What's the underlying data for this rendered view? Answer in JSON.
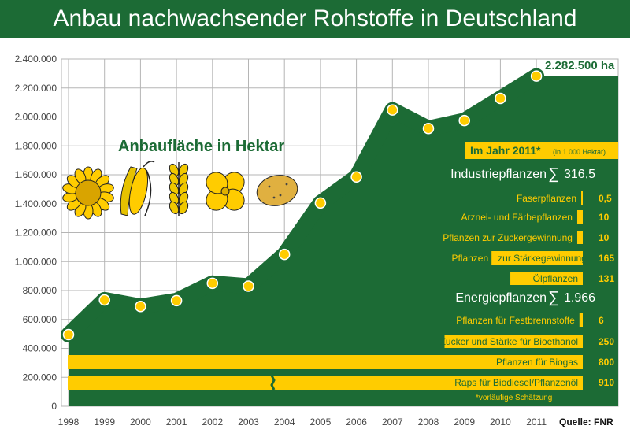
{
  "title": "Anbau nachwachsender Rohstoffe in Deutschland",
  "colors": {
    "brand_green": "#1c6b35",
    "accent_yellow": "#ffcc00"
  },
  "chart_data": {
    "type": "area",
    "title": "Anbau nachwachsender Rohstoffe in Deutschland",
    "inner_title": "Anbaufläche in Hektar",
    "x": [
      "1998",
      "1999",
      "2000",
      "2001",
      "2002",
      "2003",
      "2004",
      "2005",
      "2006",
      "2007",
      "2008",
      "2009",
      "2010",
      "2011"
    ],
    "series": [
      {
        "values": [
          495000,
          735000,
          690000,
          730000,
          850000,
          830000,
          1050000,
          1405000,
          1585000,
          2048000,
          1920000,
          1975000,
          2128000,
          2282500
        ]
      }
    ],
    "ylim": [
      0,
      2400000
    ],
    "yticks": [
      "0",
      "200.000",
      "400.000",
      "600.000",
      "800.000",
      "1.000.000",
      "1.200.000",
      "1.400.000",
      "1.600.000",
      "1.800.000",
      "2.000.000",
      "2.200.000",
      "2.400.000"
    ],
    "last_value_label": "2.282.500 ha",
    "grid": true,
    "breakdown": {
      "header": "Im Jahr 2011*",
      "header_unit": "(in 1.000 Hektar)",
      "groups": [
        {
          "name": "Industriepflanzen",
          "sigma": "∑",
          "total": "316,5",
          "items": [
            {
              "label": "Faserpflanzen",
              "value_label": "0,5",
              "value": 0.5
            },
            {
              "label": "Arznei- und Färbepflanzen",
              "value_label": "10",
              "value": 10
            },
            {
              "label": "Pflanzen zur Zuckergewinnung",
              "value_label": "10",
              "value": 10
            },
            {
              "label_outside": "Pflanzen",
              "label": "zur Stärkegewinnung",
              "value_label": "165",
              "value": 165
            },
            {
              "label": "Ölpflanzen",
              "value_label": "131",
              "value": 131
            }
          ]
        },
        {
          "name": "Energiepflanzen",
          "sigma": "∑",
          "total": "1.966",
          "items": [
            {
              "label": "Pflanzen für Festbrennstoffe",
              "value_label": "6",
              "value": 6
            },
            {
              "label": "Zucker und Stärke für Bioethanol",
              "value_label": "250",
              "value": 250
            },
            {
              "label": "Pflanzen für Biogas",
              "value_label": "800",
              "value": 800
            },
            {
              "label": "Raps für Biodiesel/Pflanzenöl",
              "value_label": "910",
              "value": 910
            }
          ]
        }
      ]
    },
    "footnote": "*vorläufige Schätzung",
    "source": "Quelle: FNR",
    "icons": [
      "sunflower-icon",
      "corn-icon",
      "wheat-icon",
      "rapeseed-flower-icon",
      "potato-icon"
    ]
  }
}
